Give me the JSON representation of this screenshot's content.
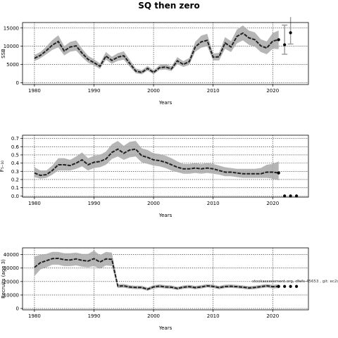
{
  "title": "SQ then zero",
  "colors": {
    "band": "#a9a9a9",
    "line": "#222222",
    "grid": "#000000",
    "projection": "#000000"
  },
  "chart_data": [
    {
      "type": "line",
      "xlabel": "Years",
      "ylabel": "SSB",
      "xlim": [
        1978,
        2026
      ],
      "ylim": [
        -500,
        16500
      ],
      "xticks": [
        1980,
        1990,
        2000,
        2010,
        2020
      ],
      "yticks": [
        0,
        5000,
        10000,
        15000
      ],
      "grid": true,
      "series": [
        {
          "role": "estimate",
          "x": [
            1980,
            1981,
            1982,
            1983,
            1984,
            1985,
            1986,
            1987,
            1988,
            1989,
            1990,
            1991,
            1992,
            1993,
            1994,
            1995,
            1996,
            1997,
            1998,
            1999,
            2000,
            2001,
            2002,
            2003,
            2004,
            2005,
            2006,
            2007,
            2008,
            2009,
            2010,
            2011,
            2012,
            2013,
            2014,
            2015,
            2016,
            2017,
            2018,
            2019,
            2020,
            2021
          ],
          "y": [
            6700,
            7500,
            8800,
            10300,
            11300,
            8700,
            9800,
            10100,
            8100,
            6400,
            5500,
            4500,
            7300,
            6100,
            7000,
            7400,
            5300,
            3200,
            2800,
            3900,
            2800,
            4100,
            4300,
            3800,
            6000,
            5000,
            5800,
            9800,
            11200,
            11600,
            7000,
            7100,
            10900,
            9800,
            12700,
            13600,
            12300,
            11800,
            10100,
            9500,
            11400,
            11800
          ],
          "lower": [
            5900,
            6700,
            7800,
            9000,
            9700,
            7500,
            8500,
            8800,
            7000,
            5500,
            4700,
            3800,
            6300,
            5200,
            6000,
            6300,
            4400,
            2600,
            2300,
            3300,
            2300,
            3500,
            3600,
            3200,
            5100,
            4300,
            4900,
            8500,
            9600,
            10000,
            6100,
            6100,
            9300,
            8400,
            10800,
            11600,
            10400,
            9900,
            8400,
            7800,
            9300,
            9200
          ],
          "upper": [
            7600,
            8400,
            9900,
            11700,
            13000,
            10000,
            11200,
            11600,
            9300,
            7400,
            6400,
            5300,
            8400,
            7100,
            8100,
            8600,
            6300,
            3900,
            3400,
            4600,
            3400,
            4800,
            5100,
            4500,
            7000,
            5900,
            6800,
            11200,
            12900,
            13400,
            8000,
            8200,
            12500,
            11400,
            14600,
            15700,
            14300,
            13800,
            11900,
            11300,
            13600,
            14300
          ]
        },
        {
          "role": "projection",
          "x": [
            2022,
            2023
          ],
          "y": [
            10400,
            13700
          ],
          "lower": [
            7800,
            10600
          ],
          "upper": [
            15800,
            18000
          ]
        }
      ]
    },
    {
      "type": "line",
      "xlabel": "Years",
      "ylabel": "F₅₋₁₀",
      "xlim": [
        1978,
        2026
      ],
      "ylim": [
        -0.015,
        0.74
      ],
      "xticks": [
        1980,
        1990,
        2000,
        2010,
        2020
      ],
      "yticks": [
        0.0,
        0.1,
        0.2,
        0.3,
        0.4,
        0.5,
        0.6,
        0.7
      ],
      "grid": true,
      "series": [
        {
          "role": "estimate",
          "x": [
            1980,
            1981,
            1982,
            1983,
            1984,
            1985,
            1986,
            1987,
            1988,
            1989,
            1990,
            1991,
            1992,
            1993,
            1994,
            1995,
            1996,
            1997,
            1998,
            1999,
            2000,
            2001,
            2002,
            2003,
            2004,
            2005,
            2006,
            2007,
            2008,
            2009,
            2010,
            2011,
            2012,
            2013,
            2014,
            2015,
            2016,
            2017,
            2018,
            2019,
            2020,
            2021
          ],
          "y": [
            0.28,
            0.25,
            0.26,
            0.31,
            0.38,
            0.38,
            0.37,
            0.4,
            0.44,
            0.38,
            0.41,
            0.42,
            0.45,
            0.53,
            0.57,
            0.52,
            0.56,
            0.57,
            0.49,
            0.47,
            0.44,
            0.43,
            0.41,
            0.38,
            0.35,
            0.33,
            0.33,
            0.34,
            0.33,
            0.34,
            0.33,
            0.31,
            0.29,
            0.29,
            0.28,
            0.27,
            0.27,
            0.27,
            0.27,
            0.29,
            0.29,
            0.28
          ],
          "lower": [
            0.23,
            0.21,
            0.22,
            0.26,
            0.31,
            0.31,
            0.31,
            0.33,
            0.36,
            0.31,
            0.34,
            0.35,
            0.38,
            0.45,
            0.48,
            0.44,
            0.47,
            0.48,
            0.41,
            0.39,
            0.37,
            0.36,
            0.34,
            0.31,
            0.29,
            0.27,
            0.27,
            0.28,
            0.27,
            0.28,
            0.27,
            0.26,
            0.24,
            0.24,
            0.23,
            0.22,
            0.22,
            0.22,
            0.22,
            0.22,
            0.21,
            0.19
          ],
          "upper": [
            0.35,
            0.31,
            0.31,
            0.37,
            0.46,
            0.46,
            0.44,
            0.48,
            0.53,
            0.46,
            0.49,
            0.5,
            0.54,
            0.63,
            0.67,
            0.61,
            0.66,
            0.67,
            0.58,
            0.56,
            0.52,
            0.51,
            0.49,
            0.46,
            0.42,
            0.39,
            0.39,
            0.4,
            0.39,
            0.4,
            0.39,
            0.37,
            0.35,
            0.34,
            0.33,
            0.33,
            0.33,
            0.33,
            0.34,
            0.38,
            0.39,
            0.42
          ]
        },
        {
          "role": "projection",
          "x": [
            2022,
            2023,
            2024
          ],
          "y": [
            0.0,
            0.0,
            0.0
          ]
        }
      ]
    },
    {
      "type": "line",
      "xlabel": "Years",
      "ylabel": "Recruits (age 3)",
      "xlim": [
        1978,
        2026
      ],
      "ylim": [
        -1000,
        45000
      ],
      "xticks": [
        1980,
        1990,
        2000,
        2010,
        2020
      ],
      "yticks": [
        0,
        10000,
        20000,
        30000,
        40000
      ],
      "grid": true,
      "annotation": "stockassessment.org,  dfefs-45653 ,  git: ec2c",
      "series": [
        {
          "role": "estimate",
          "x": [
            1980,
            1981,
            1982,
            1983,
            1984,
            1985,
            1986,
            1987,
            1988,
            1989,
            1990,
            1991,
            1992,
            1993,
            1994,
            1995,
            1996,
            1997,
            1998,
            1999,
            2000,
            2001,
            2002,
            2003,
            2004,
            2005,
            2006,
            2007,
            2008,
            2009,
            2010,
            2011,
            2012,
            2013,
            2014,
            2015,
            2016,
            2017,
            2018,
            2019,
            2020,
            2021
          ],
          "y": [
            30500,
            34000,
            35500,
            37000,
            37200,
            36200,
            36000,
            36800,
            35700,
            35200,
            37000,
            34500,
            36800,
            36500,
            16600,
            16800,
            15900,
            15600,
            15600,
            14300,
            16000,
            16600,
            16000,
            15800,
            14900,
            15800,
            16200,
            15500,
            16000,
            16800,
            16400,
            15500,
            16300,
            16500,
            16200,
            15800,
            15300,
            15600,
            16200,
            16800,
            16200,
            16400
          ],
          "lower": [
            24000,
            29000,
            30500,
            32500,
            32500,
            31500,
            31500,
            32000,
            31000,
            30500,
            31500,
            29500,
            32000,
            31500,
            15200,
            15400,
            14700,
            14400,
            14400,
            13100,
            14800,
            15300,
            14800,
            14600,
            13800,
            14600,
            15000,
            14300,
            14800,
            15600,
            15200,
            14300,
            15100,
            15300,
            15000,
            14600,
            14100,
            14400,
            15000,
            15500,
            14900,
            15000
          ],
          "upper": [
            38500,
            40000,
            40500,
            42000,
            42000,
            41000,
            41000,
            41500,
            40500,
            40500,
            43000,
            39500,
            42000,
            41500,
            18000,
            18200,
            17200,
            16900,
            16900,
            15600,
            17300,
            17900,
            17300,
            17100,
            16100,
            17100,
            17500,
            16800,
            17300,
            18100,
            17700,
            16800,
            17600,
            17800,
            17500,
            17100,
            16600,
            16900,
            17500,
            18100,
            17500,
            17900
          ]
        },
        {
          "role": "projection",
          "x": [
            2022,
            2023,
            2024
          ],
          "y": [
            16400,
            16400,
            16400
          ]
        }
      ]
    }
  ]
}
